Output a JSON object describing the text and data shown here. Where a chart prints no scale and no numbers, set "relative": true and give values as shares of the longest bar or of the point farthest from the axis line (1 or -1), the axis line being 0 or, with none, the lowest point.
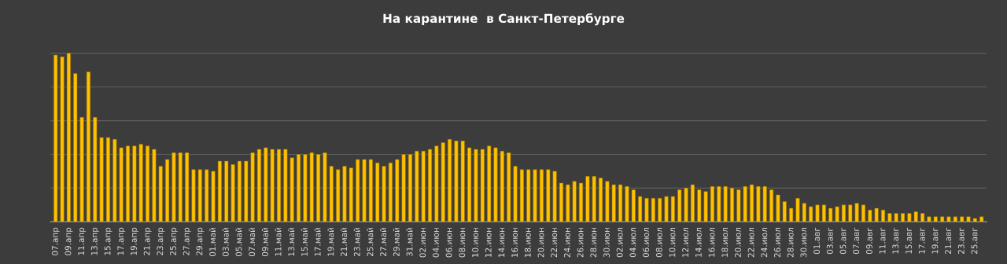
{
  "chart_data": {
    "type": "bar",
    "title": "На карантине  в Санкт-Петербурге",
    "relative": true,
    "grid": "y",
    "color": "#ffc000",
    "categories": [
      "07.апр",
      null,
      "09.апр",
      null,
      "11.апр",
      null,
      "13.апр",
      null,
      "15.апр",
      null,
      "17.апр",
      null,
      "19.апр",
      null,
      "21.апр",
      null,
      "23.апр",
      null,
      "25.апр",
      null,
      "27.апр",
      null,
      "29.апр",
      null,
      "01.май",
      null,
      "03.май",
      null,
      "05.май",
      null,
      "07.май",
      null,
      "09.май",
      null,
      "11.май",
      null,
      "13.май",
      null,
      "15.май",
      null,
      "17.май",
      null,
      "19.май",
      null,
      "21.май",
      null,
      "23.май",
      null,
      "25.май",
      null,
      "27.май",
      null,
      "29.май",
      null,
      "31.май",
      null,
      "02.июн",
      null,
      "04.июн",
      null,
      "06.июн",
      null,
      "08.июн",
      null,
      "10.июн",
      null,
      "12.июн",
      null,
      "14.июн",
      null,
      "16.июн",
      null,
      "18.июн",
      null,
      "20.июн",
      null,
      "22.июн",
      null,
      "24.июн",
      null,
      "26.июн",
      null,
      "28.июн",
      null,
      "30.июн",
      null,
      "02.июл",
      null,
      "04.июл",
      null,
      "06.июл",
      null,
      "08.июл",
      null,
      "10.июл",
      null,
      "12.июл",
      null,
      "14.июл",
      null,
      "16.июл",
      null,
      "18.июл",
      null,
      "20.июл",
      null,
      "22.июл",
      null,
      "24.июл",
      null,
      "26.июл",
      null,
      "28.июл",
      null,
      "30.июл",
      null,
      "01.авг",
      null,
      "03.авг",
      null,
      "05.авг",
      null,
      "07.авг",
      null,
      "09.авг",
      null,
      "11.авг",
      null,
      "13.авг",
      null,
      "15.авг",
      null,
      "17.авг",
      null,
      "19.авг",
      null,
      "21.авг",
      null,
      "23.авг",
      null,
      "25.авг",
      null
    ],
    "values": [
      0.99,
      0.98,
      1,
      0.88,
      0.62,
      0.89,
      0.62,
      0.5,
      0.5,
      0.49,
      0.44,
      0.45,
      0.45,
      0.46,
      0.45,
      0.43,
      0.33,
      0.37,
      0.41,
      0.41,
      0.41,
      0.31,
      0.31,
      0.31,
      0.3,
      0.36,
      0.36,
      0.34,
      0.36,
      0.36,
      0.41,
      0.43,
      0.44,
      0.43,
      0.43,
      0.43,
      0.38,
      0.4,
      0.4,
      0.41,
      0.4,
      0.41,
      0.33,
      0.31,
      0.33,
      0.32,
      0.37,
      0.37,
      0.37,
      0.35,
      0.33,
      0.35,
      0.37,
      0.4,
      0.4,
      0.42,
      0.42,
      0.43,
      0.45,
      0.47,
      0.49,
      0.48,
      0.48,
      0.44,
      0.43,
      0.43,
      0.45,
      0.44,
      0.42,
      0.41,
      0.33,
      0.31,
      0.31,
      0.31,
      0.31,
      0.31,
      0.3,
      0.23,
      0.22,
      0.24,
      0.23,
      0.27,
      0.27,
      0.26,
      0.24,
      0.22,
      0.22,
      0.21,
      0.19,
      0.15,
      0.14,
      0.14,
      0.14,
      0.15,
      0.15,
      0.19,
      0.2,
      0.22,
      0.19,
      0.18,
      0.21,
      0.21,
      0.21,
      0.2,
      0.19,
      0.21,
      0.22,
      0.21,
      0.21,
      0.19,
      0.16,
      0.12,
      0.08,
      0.14,
      0.11,
      0.09,
      0.1,
      0.1,
      0.08,
      0.09,
      0.1,
      0.1,
      0.11,
      0.1,
      0.07,
      0.08,
      0.07,
      0.05,
      0.05,
      0.05,
      0.05,
      0.06,
      0.05,
      0.03,
      0.03,
      0.03,
      0.03,
      0.03,
      0.03,
      0.03,
      0.02,
      0.03
    ]
  }
}
